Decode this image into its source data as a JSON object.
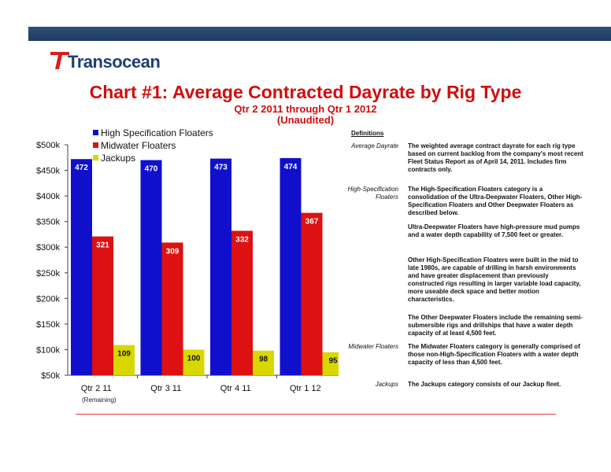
{
  "logo": {
    "text": "Transocean"
  },
  "title": "Chart #1: Average Contracted Dayrate by Rig Type",
  "subtitle1": "Qtr 2 2011 through Qtr 1 2012",
  "subtitle2": "(Unaudited)",
  "colors": {
    "high_spec": "#1010cc",
    "midwater": "#dd1111",
    "jackups": "#d8d800",
    "title": "#d00e0e"
  },
  "chart_data": {
    "type": "bar",
    "categories": [
      "Qtr 2 11",
      "Qtr 3 11",
      "Qtr 4 11",
      "Qtr 1 12"
    ],
    "category_note": "(Remaining)",
    "series": [
      {
        "name": "High Specification Floaters",
        "values": [
          472,
          470,
          473,
          474
        ]
      },
      {
        "name": "Midwater Floaters",
        "values": [
          321,
          309,
          332,
          367
        ]
      },
      {
        "name": "Jackups",
        "values": [
          109,
          100,
          98,
          95
        ]
      }
    ],
    "ylim": [
      50,
      500
    ],
    "yticks": [
      50,
      100,
      150,
      200,
      250,
      300,
      350,
      400,
      450,
      500
    ],
    "ytick_labels": [
      "$50k",
      "$100k",
      "$150k",
      "$200k",
      "$250k",
      "$300k",
      "$350k",
      "$400k",
      "$450k",
      "$500k"
    ],
    "legend_position": "top-left",
    "grid": false
  },
  "definitions": {
    "heading": "Definitions",
    "items": [
      {
        "term": "Average Dayrate",
        "text": "The weighted average contract dayrate for each rig type based on current backlog from the company's most recent Fleet Status Report as of April 14, 2011. Includes firm contracts only."
      },
      {
        "term": "High-Specification Floaters",
        "text": "The High-Specification Floaters category is a consolidation of the Ultra-Deepwater Floaters, Other High-Specification Floaters and Other Deepwater Floaters as described below."
      },
      {
        "term": "",
        "text": "Ultra-Deepwater Floaters have high-pressure mud pumps and a water depth capability of 7,500 feet or greater."
      },
      {
        "term": "",
        "text": "Other High-Specification Floaters were built in the mid to late 1980s, are capable of drilling in harsh environments and have greater displacement than previously constructed rigs resulting in larger variable load capacity, more useable deck space and better motion characteristics."
      },
      {
        "term": "",
        "text": "The Other Deepwater Floaters include the remaining semi-submersible rigs and drillships that have a water depth capacity of at least 4,500 feet."
      },
      {
        "term": "Midwater Floaters",
        "text": "The Midwater Floaters category is generally comprised of those non-High-Specification Floaters with a water depth capacity of less than 4,500 feet."
      },
      {
        "term": "Jackups",
        "text": "The Jackups category consists of our Jackup fleet."
      }
    ]
  }
}
